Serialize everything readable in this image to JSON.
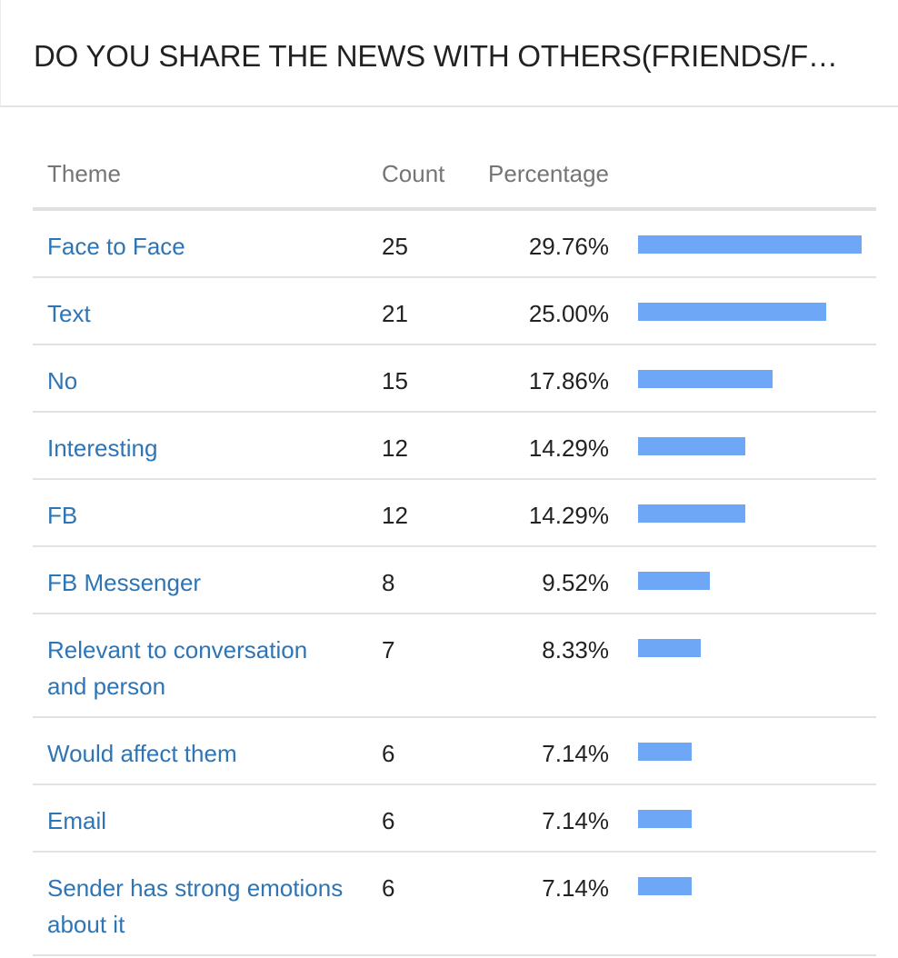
{
  "title": "DO YOU SHARE THE NEWS WITH OTHERS(FRIENDS/F…",
  "columns": {
    "theme": "Theme",
    "count": "Count",
    "percentage": "Percentage"
  },
  "colors": {
    "link": "#2e75b6",
    "bar": "#6fa7f7"
  },
  "max_percentage": 29.76,
  "rows": [
    {
      "theme": "Face to Face",
      "count": "25",
      "percentage": "29.76%",
      "value": 29.76
    },
    {
      "theme": "Text",
      "count": "21",
      "percentage": "25.00%",
      "value": 25.0
    },
    {
      "theme": "No",
      "count": "15",
      "percentage": "17.86%",
      "value": 17.86
    },
    {
      "theme": "Interesting",
      "count": "12",
      "percentage": "14.29%",
      "value": 14.29
    },
    {
      "theme": "FB",
      "count": "12",
      "percentage": "14.29%",
      "value": 14.29
    },
    {
      "theme": "FB Messenger",
      "count": "8",
      "percentage": "9.52%",
      "value": 9.52
    },
    {
      "theme": "Relevant to conversation and person",
      "count": "7",
      "percentage": "8.33%",
      "value": 8.33
    },
    {
      "theme": "Would affect them",
      "count": "6",
      "percentage": "7.14%",
      "value": 7.14
    },
    {
      "theme": "Email",
      "count": "6",
      "percentage": "7.14%",
      "value": 7.14
    },
    {
      "theme": "Sender has strong emotions about it",
      "count": "6",
      "percentage": "7.14%",
      "value": 7.14
    }
  ]
}
